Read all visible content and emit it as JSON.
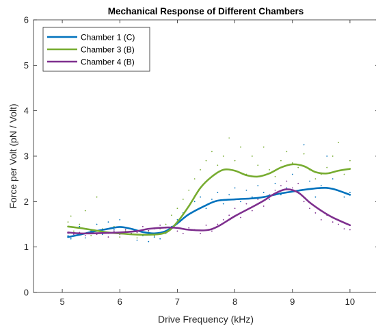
{
  "chart_data": {
    "type": "line",
    "title": "Mechanical Response of Different Chambers",
    "xlabel": "Drive Frequency (kHz)",
    "ylabel": "Force per Volt (pN / Volt)",
    "xlim": [
      4.5,
      10.5
    ],
    "ylim": [
      0,
      6
    ],
    "xticks": [
      5,
      6,
      7,
      8,
      9,
      10
    ],
    "yticks": [
      0,
      1,
      2,
      3,
      4,
      5,
      6
    ],
    "grid": false,
    "legend_position": "top-left",
    "series": [
      {
        "name": "Chamber 1 (C)",
        "color": "#0072BD",
        "smooth": [
          [
            5.1,
            1.22
          ],
          [
            5.3,
            1.27
          ],
          [
            5.5,
            1.33
          ],
          [
            5.8,
            1.4
          ],
          [
            6.0,
            1.44
          ],
          [
            6.2,
            1.4
          ],
          [
            6.4,
            1.33
          ],
          [
            6.6,
            1.3
          ],
          [
            6.8,
            1.35
          ],
          [
            7.0,
            1.52
          ],
          [
            7.2,
            1.72
          ],
          [
            7.5,
            1.92
          ],
          [
            7.7,
            2.02
          ],
          [
            8.0,
            2.05
          ],
          [
            8.3,
            2.07
          ],
          [
            8.5,
            2.1
          ],
          [
            8.8,
            2.18
          ],
          [
            9.0,
            2.22
          ],
          [
            9.2,
            2.26
          ],
          [
            9.5,
            2.3
          ],
          [
            9.7,
            2.28
          ],
          [
            10.0,
            2.15
          ]
        ],
        "scatter": [
          [
            5.1,
            1.25
          ],
          [
            5.15,
            1.18
          ],
          [
            5.2,
            1.3
          ],
          [
            5.3,
            1.45
          ],
          [
            5.4,
            1.2
          ],
          [
            5.5,
            1.35
          ],
          [
            5.6,
            1.5
          ],
          [
            5.7,
            1.28
          ],
          [
            5.8,
            1.55
          ],
          [
            5.9,
            1.38
          ],
          [
            6.0,
            1.6
          ],
          [
            6.1,
            1.42
          ],
          [
            6.2,
            1.3
          ],
          [
            6.3,
            1.15
          ],
          [
            6.4,
            1.25
          ],
          [
            6.5,
            1.12
          ],
          [
            6.6,
            1.22
          ],
          [
            6.7,
            1.18
          ],
          [
            6.8,
            1.3
          ],
          [
            6.9,
            1.45
          ],
          [
            7.0,
            1.6
          ],
          [
            7.1,
            1.75
          ],
          [
            7.2,
            1.9
          ],
          [
            7.3,
            2.0
          ],
          [
            7.4,
            2.1
          ],
          [
            7.5,
            1.85
          ],
          [
            7.6,
            2.05
          ],
          [
            7.7,
            2.2
          ],
          [
            7.8,
            1.95
          ],
          [
            7.9,
            2.15
          ],
          [
            8.0,
            2.3
          ],
          [
            8.1,
            2.0
          ],
          [
            8.2,
            2.25
          ],
          [
            8.3,
            2.1
          ],
          [
            8.4,
            2.35
          ],
          [
            8.5,
            2.2
          ],
          [
            8.6,
            2.05
          ],
          [
            8.7,
            2.4
          ],
          [
            8.8,
            2.15
          ],
          [
            8.9,
            2.3
          ],
          [
            9.0,
            2.6
          ],
          [
            9.1,
            2.2
          ],
          [
            9.2,
            3.25
          ],
          [
            9.3,
            2.45
          ],
          [
            9.4,
            2.1
          ],
          [
            9.5,
            2.35
          ],
          [
            9.6,
            3.0
          ],
          [
            9.7,
            2.5
          ],
          [
            9.8,
            2.25
          ],
          [
            9.9,
            2.1
          ],
          [
            10.0,
            2.2
          ]
        ]
      },
      {
        "name": "Chamber 3 (B)",
        "color": "#77AC30",
        "smooth": [
          [
            5.1,
            1.45
          ],
          [
            5.3,
            1.42
          ],
          [
            5.5,
            1.38
          ],
          [
            5.8,
            1.32
          ],
          [
            6.0,
            1.3
          ],
          [
            6.2,
            1.28
          ],
          [
            6.5,
            1.27
          ],
          [
            6.8,
            1.32
          ],
          [
            7.0,
            1.55
          ],
          [
            7.2,
            1.9
          ],
          [
            7.4,
            2.3
          ],
          [
            7.6,
            2.55
          ],
          [
            7.8,
            2.7
          ],
          [
            8.0,
            2.68
          ],
          [
            8.2,
            2.58
          ],
          [
            8.4,
            2.55
          ],
          [
            8.6,
            2.62
          ],
          [
            8.8,
            2.75
          ],
          [
            9.0,
            2.82
          ],
          [
            9.2,
            2.78
          ],
          [
            9.4,
            2.65
          ],
          [
            9.6,
            2.62
          ],
          [
            9.8,
            2.68
          ],
          [
            10.0,
            2.72
          ]
        ],
        "scatter": [
          [
            5.1,
            1.55
          ],
          [
            5.15,
            1.68
          ],
          [
            5.2,
            1.35
          ],
          [
            5.3,
            1.5
          ],
          [
            5.4,
            1.8
          ],
          [
            5.5,
            1.25
          ],
          [
            5.6,
            2.1
          ],
          [
            5.7,
            1.4
          ],
          [
            5.8,
            1.3
          ],
          [
            5.9,
            1.45
          ],
          [
            6.0,
            1.22
          ],
          [
            6.1,
            1.35
          ],
          [
            6.2,
            1.3
          ],
          [
            6.3,
            1.2
          ],
          [
            6.4,
            1.28
          ],
          [
            6.5,
            1.35
          ],
          [
            6.6,
            1.25
          ],
          [
            6.7,
            1.4
          ],
          [
            6.8,
            1.5
          ],
          [
            6.9,
            1.7
          ],
          [
            7.0,
            1.85
          ],
          [
            7.1,
            2.05
          ],
          [
            7.2,
            2.25
          ],
          [
            7.3,
            2.5
          ],
          [
            7.4,
            2.7
          ],
          [
            7.5,
            2.9
          ],
          [
            7.6,
            3.1
          ],
          [
            7.7,
            2.8
          ],
          [
            7.8,
            3.0
          ],
          [
            7.9,
            3.4
          ],
          [
            8.0,
            2.9
          ],
          [
            8.1,
            3.2
          ],
          [
            8.2,
            2.6
          ],
          [
            8.3,
            3.0
          ],
          [
            8.4,
            2.8
          ],
          [
            8.5,
            3.2
          ],
          [
            8.6,
            2.7
          ],
          [
            8.7,
            2.55
          ],
          [
            8.8,
            2.9
          ],
          [
            8.9,
            3.1
          ],
          [
            9.0,
            2.85
          ],
          [
            9.1,
            2.75
          ],
          [
            9.2,
            3.05
          ],
          [
            9.3,
            2.7
          ],
          [
            9.4,
            2.5
          ],
          [
            9.5,
            2.6
          ],
          [
            9.6,
            2.75
          ],
          [
            9.7,
            3.0
          ],
          [
            9.8,
            3.3
          ],
          [
            9.9,
            2.6
          ],
          [
            10.0,
            2.9
          ]
        ]
      },
      {
        "name": "Chamber 4 (B)",
        "color": "#7E2F8E",
        "smooth": [
          [
            5.1,
            1.32
          ],
          [
            5.3,
            1.3
          ],
          [
            5.5,
            1.3
          ],
          [
            5.8,
            1.31
          ],
          [
            6.0,
            1.32
          ],
          [
            6.3,
            1.35
          ],
          [
            6.5,
            1.4
          ],
          [
            6.8,
            1.43
          ],
          [
            7.0,
            1.42
          ],
          [
            7.2,
            1.38
          ],
          [
            7.5,
            1.37
          ],
          [
            7.7,
            1.45
          ],
          [
            8.0,
            1.68
          ],
          [
            8.3,
            1.88
          ],
          [
            8.5,
            2.02
          ],
          [
            8.7,
            2.18
          ],
          [
            8.9,
            2.27
          ],
          [
            9.1,
            2.2
          ],
          [
            9.3,
            1.98
          ],
          [
            9.5,
            1.8
          ],
          [
            9.7,
            1.65
          ],
          [
            10.0,
            1.48
          ]
        ],
        "scatter": [
          [
            5.1,
            1.3
          ],
          [
            5.15,
            1.22
          ],
          [
            5.2,
            1.28
          ],
          [
            5.3,
            1.32
          ],
          [
            5.4,
            1.25
          ],
          [
            5.5,
            1.35
          ],
          [
            5.6,
            1.28
          ],
          [
            5.7,
            1.3
          ],
          [
            5.8,
            1.22
          ],
          [
            5.9,
            1.35
          ],
          [
            6.0,
            1.28
          ],
          [
            6.1,
            1.38
          ],
          [
            6.2,
            1.3
          ],
          [
            6.3,
            1.32
          ],
          [
            6.4,
            1.45
          ],
          [
            6.5,
            1.36
          ],
          [
            6.6,
            1.4
          ],
          [
            6.7,
            1.48
          ],
          [
            6.8,
            1.42
          ],
          [
            6.9,
            1.4
          ],
          [
            7.0,
            1.35
          ],
          [
            7.1,
            1.3
          ],
          [
            7.2,
            1.42
          ],
          [
            7.3,
            1.38
          ],
          [
            7.4,
            1.3
          ],
          [
            7.5,
            1.48
          ],
          [
            7.6,
            1.35
          ],
          [
            7.7,
            1.5
          ],
          [
            7.8,
            1.6
          ],
          [
            7.9,
            1.7
          ],
          [
            8.0,
            1.85
          ],
          [
            8.1,
            1.65
          ],
          [
            8.2,
            1.95
          ],
          [
            8.3,
            1.8
          ],
          [
            8.4,
            2.05
          ],
          [
            8.5,
            1.9
          ],
          [
            8.6,
            2.15
          ],
          [
            8.7,
            2.25
          ],
          [
            8.8,
            2.35
          ],
          [
            8.9,
            2.45
          ],
          [
            9.0,
            2.3
          ],
          [
            9.1,
            2.4
          ],
          [
            9.2,
            2.0
          ],
          [
            9.3,
            1.85
          ],
          [
            9.4,
            1.75
          ],
          [
            9.5,
            1.6
          ],
          [
            9.6,
            1.7
          ],
          [
            9.7,
            1.55
          ],
          [
            9.8,
            1.5
          ],
          [
            9.9,
            1.4
          ],
          [
            10.0,
            1.38
          ]
        ]
      }
    ]
  }
}
